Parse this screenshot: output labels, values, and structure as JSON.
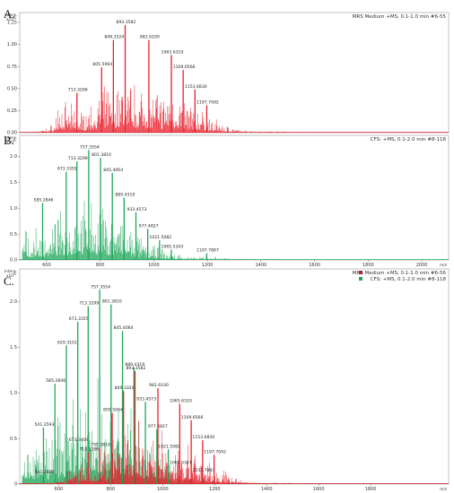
{
  "figure": {
    "panel_labels": [
      "A.",
      "B.",
      "C."
    ],
    "y_unit_line1": "Intens.",
    "y_unit_line2": "x10",
    "y_unit_exp": "6",
    "x_unit": "m/z"
  },
  "colors": {
    "red": "#e8202c",
    "green": "#1fa65a"
  },
  "chart_data": [
    {
      "type": "bar",
      "panel": "A.",
      "legend": [
        {
          "label": "MRS Medium +MS, 0.1-1.0 min #6-55",
          "color": "#e8202c"
        }
      ],
      "xlim": [
        500,
        2100
      ],
      "ylim": [
        0,
        1.3
      ],
      "xticks": [],
      "yticks": [
        0,
        0.25,
        0.5,
        0.75,
        1.0,
        1.25
      ],
      "ytick_labels": [
        "0.00",
        "0.25",
        "0.50",
        "0.75",
        "1.00",
        "1.25"
      ],
      "series": [
        {
          "color": "#e8202c",
          "peaks": [
            {
              "x": 713.3266,
              "y": 0.45,
              "label": "713.3266"
            },
            {
              "x": 805.5064,
              "y": 0.74,
              "label": "805.5064"
            },
            {
              "x": 849.3324,
              "y": 1.05,
              "label": "849.3324"
            },
            {
              "x": 893.3582,
              "y": 1.22,
              "label": "893.3582"
            },
            {
              "x": 981.61,
              "y": 1.05,
              "label": "981.6100"
            },
            {
              "x": 1065.631,
              "y": 0.88,
              "label": "1065.6310"
            },
            {
              "x": 1109.6566,
              "y": 0.71,
              "label": "1109.6566"
            },
            {
              "x": 1153.683,
              "y": 0.49,
              "label": "1153.6830"
            },
            {
              "x": 1197.7092,
              "y": 0.31,
              "label": "1197.7092"
            }
          ]
        }
      ]
    },
    {
      "type": "bar",
      "panel": "B.",
      "legend": [
        {
          "label": "CFS: +MS, 0.1-2.0 min #8-118",
          "color": "#1fa65a"
        }
      ],
      "xlim": [
        500,
        2100
      ],
      "ylim": [
        0,
        2.3
      ],
      "xticks": [
        600,
        800,
        1000,
        1200,
        1400,
        1600,
        1800,
        2000
      ],
      "yticks": [
        0,
        0.5,
        1.0,
        1.5,
        2.0
      ],
      "ytick_labels": [
        "0.0",
        "0.5",
        "1.0",
        "1.5",
        "2.0"
      ],
      "series": [
        {
          "color": "#1fa65a",
          "peaks": [
            {
              "x": 585.2846,
              "y": 1.1,
              "label": "585.2846"
            },
            {
              "x": 673.3355,
              "y": 1.7,
              "label": "673.3355"
            },
            {
              "x": 713.3299,
              "y": 1.9,
              "label": "713.3299"
            },
            {
              "x": 757.3554,
              "y": 2.12,
              "label": "757.3554"
            },
            {
              "x": 801.381,
              "y": 1.97,
              "label": "801.3810"
            },
            {
              "x": 845.4064,
              "y": 1.68,
              "label": "845.4064"
            },
            {
              "x": 889.4319,
              "y": 1.2,
              "label": "889.4319"
            },
            {
              "x": 933.4573,
              "y": 0.92,
              "label": "933.4573"
            },
            {
              "x": 977.4827,
              "y": 0.6,
              "label": "977.4827"
            },
            {
              "x": 1021.5082,
              "y": 0.38,
              "label": "1021.5082"
            },
            {
              "x": 1065.5343,
              "y": 0.2,
              "label": "1065.5343"
            },
            {
              "x": 1197.7887,
              "y": 0.13,
              "label": "1197.7887"
            }
          ]
        }
      ]
    },
    {
      "type": "bar",
      "panel": "C.",
      "legend": [
        {
          "label": "MRS Medium +MS, 0.1-1.0 min #6-56",
          "color": "#e8202c"
        },
        {
          "label": "CFS: +MS, 0.1-2.0 min #8-118",
          "color": "#1fa65a"
        }
      ],
      "xlim": [
        450,
        2100
      ],
      "ylim": [
        0,
        2.3
      ],
      "xticks": [
        600,
        800,
        1000,
        1200,
        1400,
        1600,
        1800
      ],
      "yticks": [
        0,
        0.5,
        1.0,
        1.5,
        2.0
      ],
      "ytick_labels": [
        "0",
        "0.5",
        "1.0",
        "1.5",
        "2.0"
      ],
      "series": [
        {
          "color": "#1fa65a",
          "peaks": [
            {
              "x": 541.262,
              "y": 0.1,
              "label": "541.2620"
            },
            {
              "x": 541.2593,
              "y": 0.62,
              "label": "541.2593"
            },
            {
              "x": 585.2846,
              "y": 1.1,
              "label": "585.2846"
            },
            {
              "x": 629.3101,
              "y": 1.52,
              "label": "629.3101"
            },
            {
              "x": 673.3404,
              "y": 0.45,
              "label": "673.3404"
            },
            {
              "x": 673.3355,
              "y": 1.78,
              "label": "673.3355"
            },
            {
              "x": 713.3299,
              "y": 1.95,
              "label": "713.3299"
            },
            {
              "x": 757.3554,
              "y": 2.13,
              "label": "757.3554"
            },
            {
              "x": 801.381,
              "y": 1.97,
              "label": "801.3810"
            },
            {
              "x": 845.4064,
              "y": 1.68,
              "label": "845.4064"
            },
            {
              "x": 889.4319,
              "y": 1.28,
              "label": "889.4319"
            },
            {
              "x": 933.4573,
              "y": 0.9,
              "label": "933.4573"
            },
            {
              "x": 977.4827,
              "y": 0.6,
              "label": "977.4827"
            },
            {
              "x": 1021.5082,
              "y": 0.38,
              "label": "1021.5082"
            },
            {
              "x": 1065.5341,
              "y": 0.2,
              "label": "1065.5341"
            },
            {
              "x": 1153.7887,
              "y": 0.12,
              "label": "1153.7887"
            }
          ]
        },
        {
          "color": "#e8202c",
          "peaks": [
            {
              "x": 713.3266,
              "y": 0.35,
              "label": "713.3266"
            },
            {
              "x": 757.3616,
              "y": 0.4,
              "label": "757.3616"
            },
            {
              "x": 805.5064,
              "y": 0.78,
              "label": "805.5064"
            },
            {
              "x": 849.3324,
              "y": 1.02,
              "label": "849.3324"
            },
            {
              "x": 893.3582,
              "y": 1.24,
              "label": "893.3582"
            },
            {
              "x": 981.61,
              "y": 1.05,
              "label": "981.6100"
            },
            {
              "x": 1065.631,
              "y": 0.88,
              "label": "1065.6310"
            },
            {
              "x": 1109.6566,
              "y": 0.7,
              "label": "1109.6566"
            },
            {
              "x": 1153.683,
              "y": 0.48,
              "label": "1153.6830"
            },
            {
              "x": 1197.7092,
              "y": 0.32,
              "label": "1197.7092"
            }
          ]
        }
      ]
    }
  ]
}
